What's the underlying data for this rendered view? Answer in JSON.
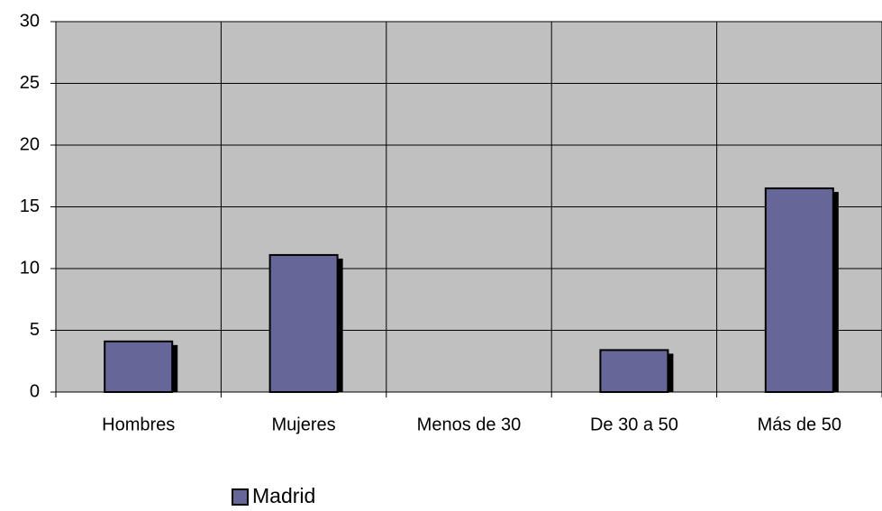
{
  "chart_data": {
    "type": "bar",
    "categories": [
      "Hombres",
      "Mujeres",
      "Menos de 30",
      "De 30 a 50",
      "Más de 50"
    ],
    "series": [
      {
        "name": "Madrid",
        "color": "#666699",
        "values": [
          4.1,
          11.1,
          0,
          3.4,
          16.5
        ]
      }
    ],
    "ylim": [
      0,
      30
    ],
    "yticks": [
      0,
      5,
      10,
      15,
      20,
      25,
      30
    ],
    "grid": true,
    "legend": "bottom"
  }
}
